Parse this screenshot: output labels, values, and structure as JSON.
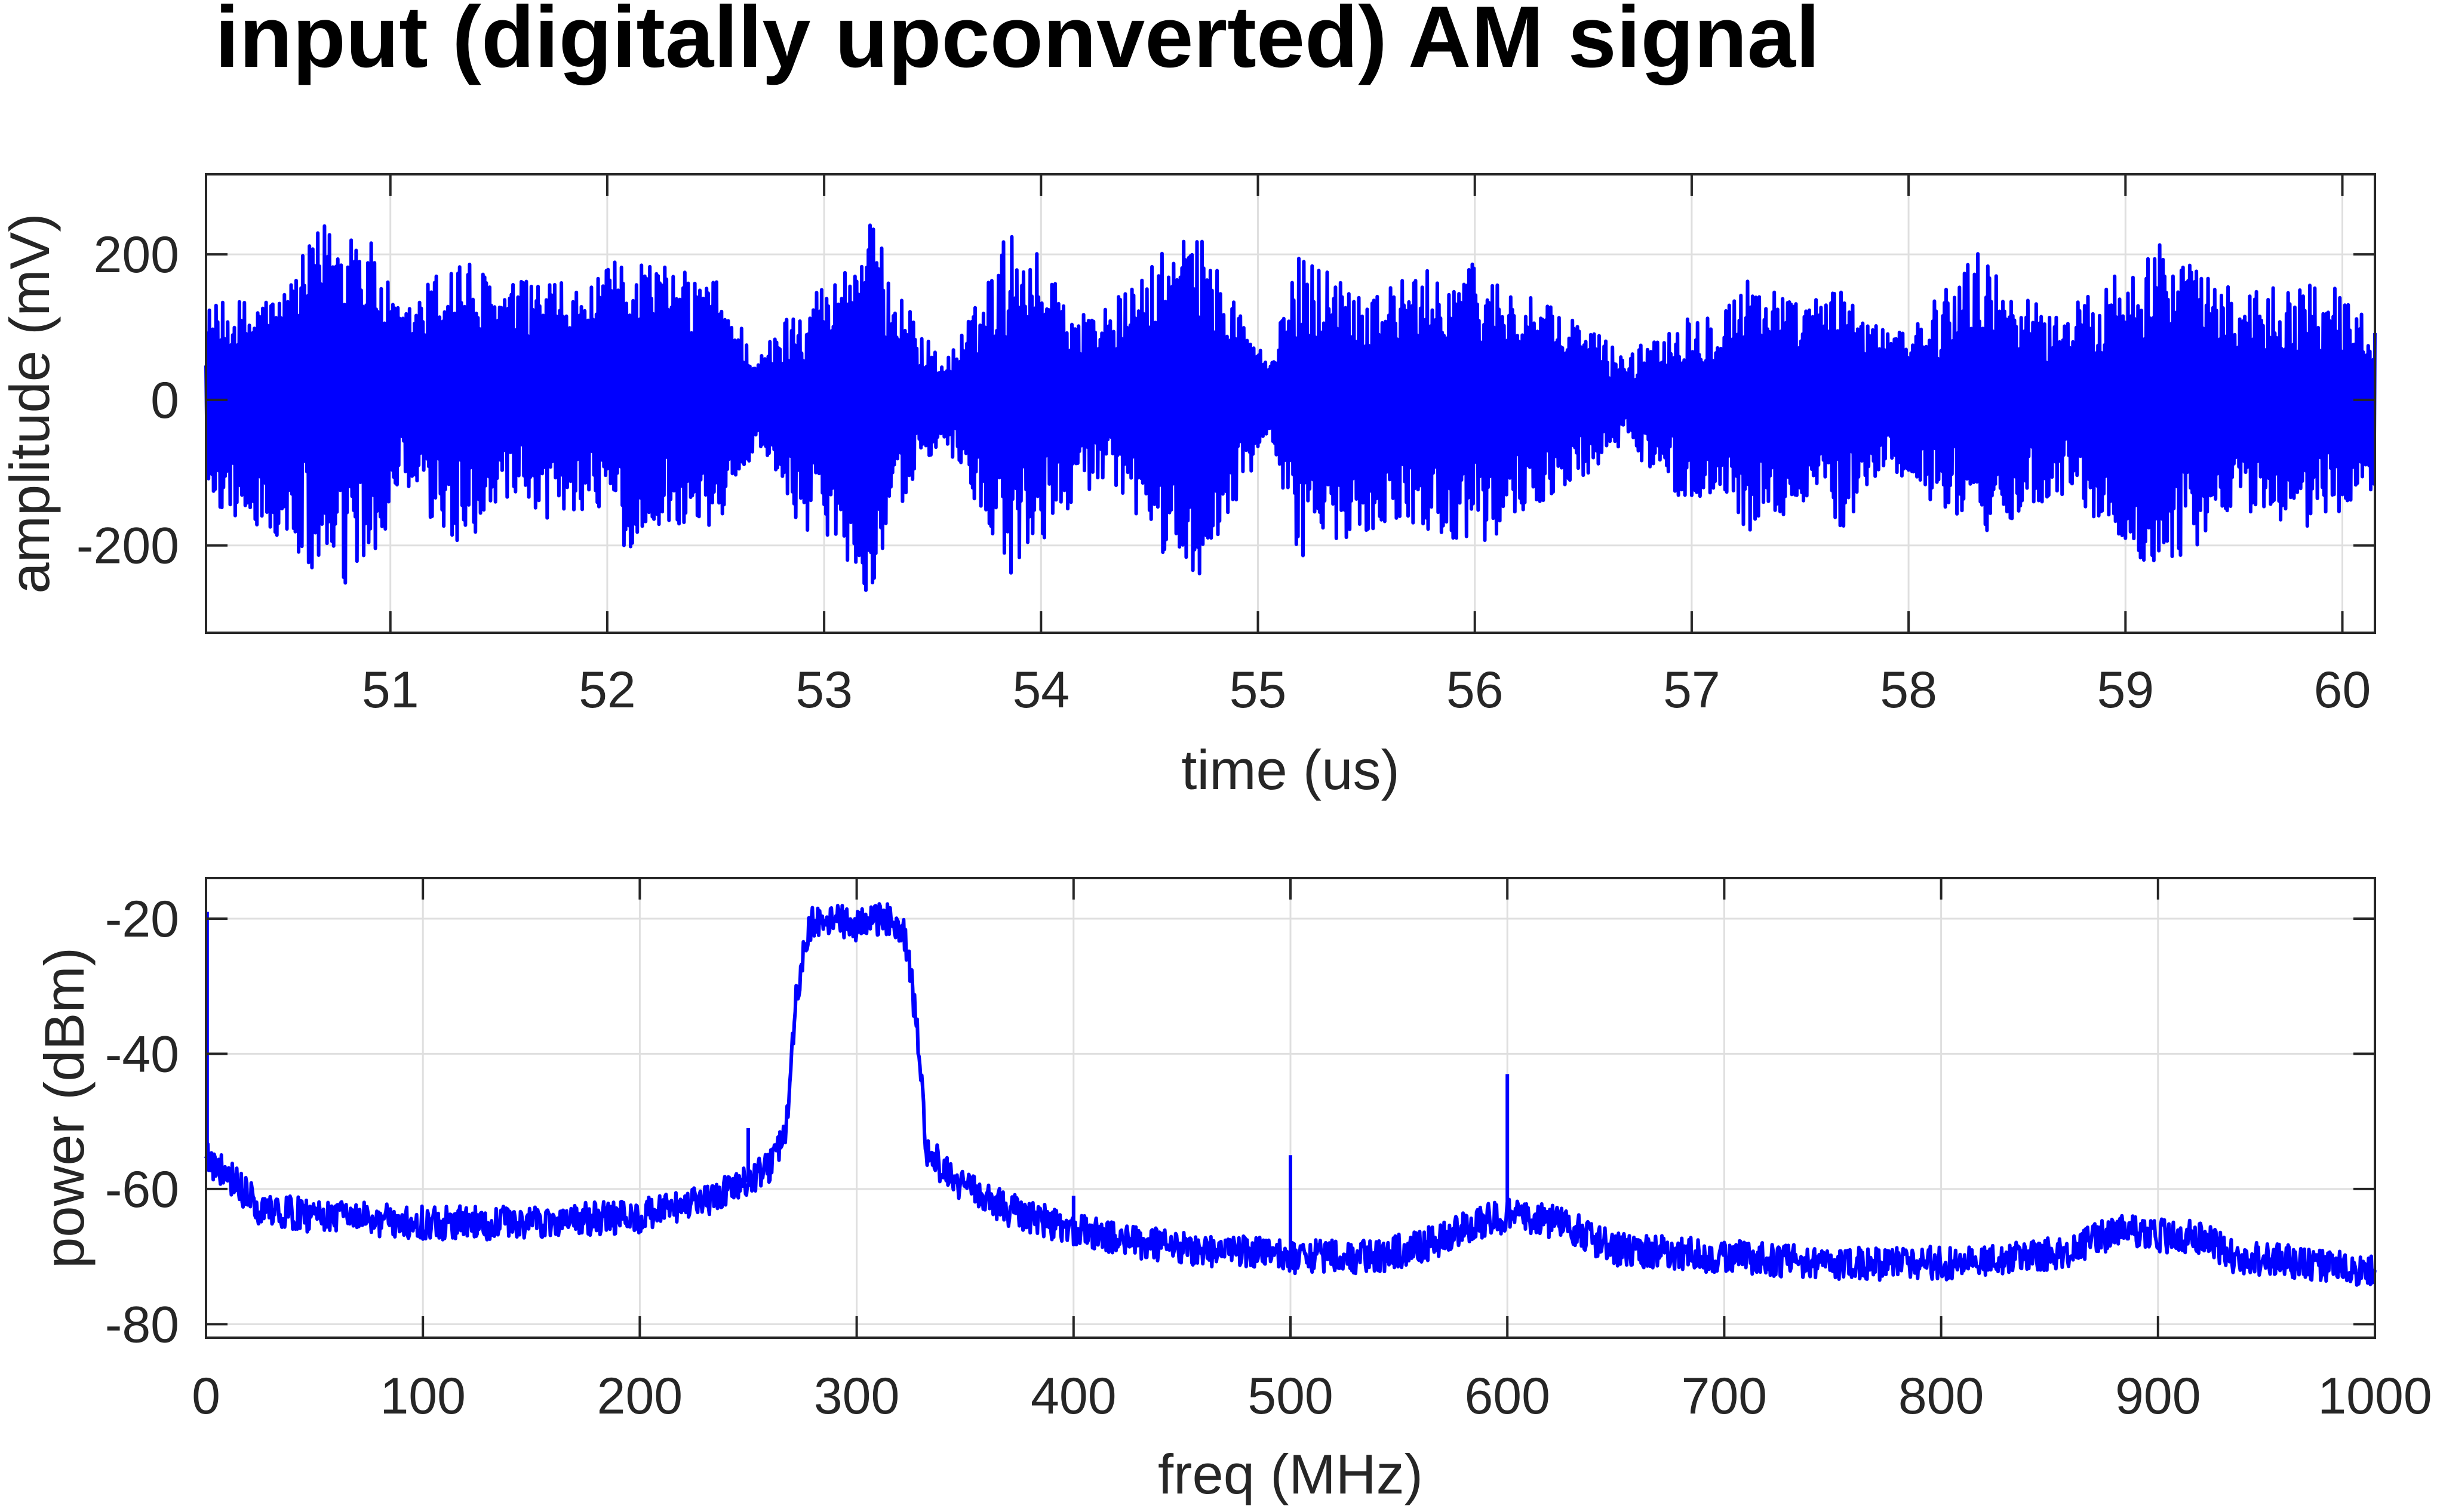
{
  "title": "input (digitally upconverted) AM signal",
  "colors": {
    "series": "#0000ff",
    "axes": "#262626",
    "grid": "#dfdfdf",
    "background": "#ffffff"
  },
  "chart_data": [
    {
      "type": "line",
      "title": "input (digitally upconverted) AM signal",
      "xlabel": "time (us)",
      "ylabel": "amplitude (mV)",
      "xlim": [
        50.15,
        60.15
      ],
      "ylim": [
        -320,
        310
      ],
      "xticks": [
        51,
        52,
        53,
        54,
        55,
        56,
        57,
        58,
        59,
        60
      ],
      "xtick_labels": [
        "51",
        "52",
        "53",
        "54",
        "55",
        "56",
        "57",
        "58",
        "59",
        "60"
      ],
      "yticks": [
        -200,
        0,
        200
      ],
      "ytick_labels": [
        "-200",
        "0",
        "200"
      ],
      "grid": true,
      "legend": "none",
      "description": "dense AM-modulated carrier oscillating around 0 mV",
      "envelope": {
        "x": [
          50.15,
          50.5,
          50.7,
          50.85,
          51.05,
          51.3,
          51.5,
          51.7,
          51.9,
          52.1,
          52.3,
          52.5,
          52.7,
          52.9,
          53.05,
          53.2,
          53.4,
          53.55,
          53.7,
          53.85,
          54.0,
          54.2,
          54.4,
          54.55,
          54.7,
          54.9,
          55.05,
          55.2,
          55.4,
          55.6,
          55.8,
          56.0,
          56.2,
          56.4,
          56.5,
          56.7,
          56.9,
          57.1,
          57.3,
          57.5,
          57.7,
          57.9,
          58.1,
          58.3,
          58.5,
          58.7,
          58.9,
          59.1,
          59.3,
          59.5,
          59.7,
          59.9,
          60.15
        ],
        "max": [
          130,
          150,
          250,
          260,
          120,
          210,
          160,
          170,
          150,
          210,
          180,
          170,
          60,
          150,
          170,
          255,
          120,
          50,
          130,
          240,
          200,
          120,
          150,
          200,
          240,
          140,
          50,
          210,
          170,
          160,
          180,
          190,
          150,
          120,
          110,
          60,
          110,
          130,
          180,
          130,
          160,
          90,
          130,
          210,
          150,
          120,
          160,
          230,
          190,
          150,
          160,
          170,
          110
        ],
        "min": [
          -140,
          -200,
          -260,
          -270,
          -130,
          -210,
          -150,
          -170,
          -150,
          -210,
          -170,
          -180,
          -60,
          -180,
          -190,
          -270,
          -120,
          -50,
          -160,
          -255,
          -200,
          -120,
          -150,
          -210,
          -255,
          -150,
          -50,
          -230,
          -190,
          -170,
          -180,
          -200,
          -170,
          -120,
          -110,
          -60,
          -130,
          -140,
          -190,
          -140,
          -180,
          -90,
          -140,
          -200,
          -160,
          -130,
          -170,
          -245,
          -210,
          -150,
          -170,
          -180,
          -120
        ]
      }
    },
    {
      "type": "line",
      "xlabel": "freq (MHz)",
      "ylabel": "power (dBm)",
      "xlim": [
        0,
        1000
      ],
      "ylim": [
        -82,
        -14
      ],
      "xticks": [
        0,
        100,
        200,
        300,
        400,
        500,
        600,
        700,
        800,
        900,
        1000
      ],
      "xtick_labels": [
        "0",
        "100",
        "200",
        "300",
        "400",
        "500",
        "600",
        "700",
        "800",
        "900",
        "1000"
      ],
      "yticks": [
        -80,
        -60,
        -40,
        -20
      ],
      "ytick_labels": [
        "-80",
        "-60",
        "-40",
        "-20"
      ],
      "grid": true,
      "legend": "none",
      "description": "power spectrum with main band around 270-330 MHz and spurs at 250, 500, 600 MHz",
      "baseline": {
        "x": [
          0,
          2,
          10,
          25,
          50,
          100,
          150,
          200,
          230,
          250,
          262,
          268,
          272,
          278,
          285,
          300,
          315,
          322,
          328,
          332,
          345,
          370,
          400,
          430,
          460,
          500,
          540,
          565,
          585,
          600,
          625,
          650,
          700,
          750,
          800,
          840,
          860,
          875,
          885,
          905,
          920,
          935,
          970,
          1000
        ],
        "y": [
          -53,
          -56,
          -58,
          -63,
          -64,
          -65,
          -65,
          -64,
          -62,
          -59,
          -56,
          -50,
          -32,
          -21,
          -20,
          -21,
          -20,
          -22,
          -36,
          -54,
          -59,
          -63,
          -66,
          -68,
          -69,
          -70,
          -70,
          -68,
          -65,
          -64,
          -65,
          -69,
          -70,
          -71,
          -71,
          -70,
          -69,
          -67,
          -66,
          -67,
          -67,
          -70,
          -71,
          -72
        ],
        "noise_amplitude_dbm": 2.5
      },
      "spikes": [
        {
          "x": 0.5,
          "peak": -19
        },
        {
          "x": 250,
          "peak": -51
        },
        {
          "x": 400,
          "peak": -61
        },
        {
          "x": 500,
          "peak": -55
        },
        {
          "x": 600,
          "peak": -43
        }
      ]
    }
  ]
}
